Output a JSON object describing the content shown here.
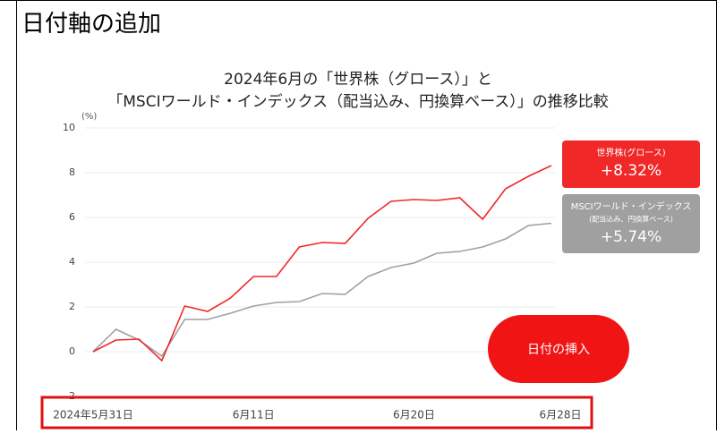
{
  "header": {
    "title": "日付軸の追加"
  },
  "button": {
    "label": "日付の挿入"
  },
  "chart_data": {
    "type": "line",
    "title": [
      "2024年6月の「世界株（グロース）」と",
      "「MSCIワールド・インデックス（配当込み、円換算ベース）」の推移比較"
    ],
    "y_unit": "(%)",
    "categories": [
      "2024年5月31日",
      null,
      null,
      null,
      null,
      null,
      null,
      "6月11日",
      null,
      null,
      null,
      null,
      null,
      null,
      "6月20日",
      null,
      null,
      null,
      null,
      null,
      "6月28日"
    ],
    "series": [
      {
        "name": "世界株(グロース)",
        "color": "#f02828",
        "label": "+8.32%",
        "values": [
          0,
          0.52,
          0.56,
          -0.4,
          2.04,
          1.8,
          2.4,
          3.36,
          3.36,
          4.68,
          4.88,
          4.84,
          5.96,
          6.72,
          6.8,
          6.76,
          6.88,
          5.92,
          7.28,
          7.84,
          8.32
        ]
      },
      {
        "name": "MSCIワールド・インデックス",
        "note": "(配当込み、円換算ベース)",
        "color": "#a0a0a0",
        "label": "+5.74%",
        "values": [
          0,
          1.0,
          0.52,
          -0.2,
          1.44,
          1.44,
          1.72,
          2.04,
          2.2,
          2.24,
          2.6,
          2.56,
          3.36,
          3.76,
          3.96,
          4.4,
          4.48,
          4.68,
          5.04,
          5.64,
          5.74
        ]
      }
    ],
    "ylim": [
      -2,
      10
    ],
    "yticks": [
      -2,
      0,
      2,
      4,
      6,
      8,
      10
    ],
    "grid": true
  }
}
